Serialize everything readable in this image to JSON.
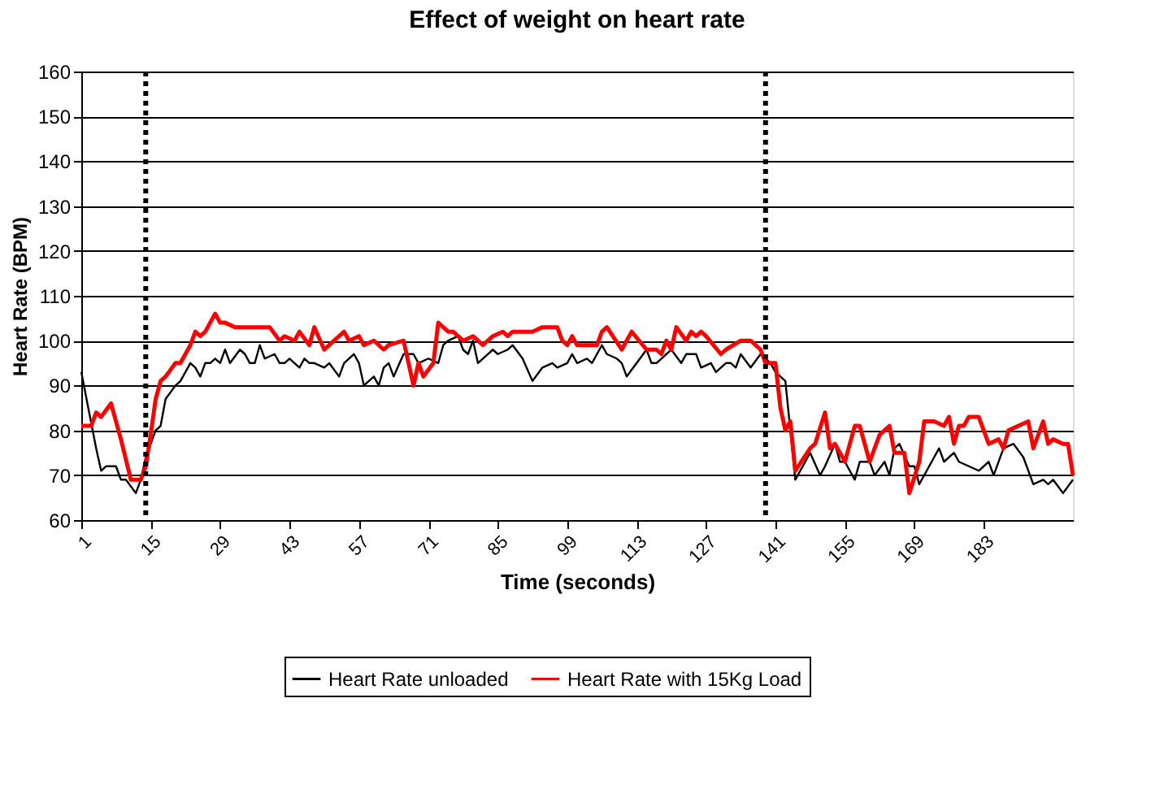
{
  "chart_data": {
    "type": "line",
    "title": "Effect of weight on heart rate",
    "xlabel": "Time (seconds)",
    "ylabel": "Heart Rate (BPM)",
    "xlim": [
      1,
      201
    ],
    "xticks": [
      1,
      15,
      29,
      43,
      57,
      71,
      85,
      99,
      113,
      127,
      141,
      155,
      169,
      183
    ],
    "ylim": [
      60,
      160
    ],
    "yticks": [
      60,
      70,
      80,
      90,
      100,
      110,
      120,
      130,
      140,
      150,
      160
    ],
    "grid": "y",
    "legend": "bottom",
    "marker": "none",
    "line_style": "solid",
    "ref_lines": [
      {
        "axis": "x",
        "value": 14,
        "color": "#000000",
        "line_style": "dotted"
      },
      {
        "axis": "x",
        "value": 139,
        "color": "#000000",
        "line_style": "dotted"
      }
    ],
    "series": [
      {
        "name": "Heart Rate unloaded",
        "color": "#000000",
        "x": [
          1,
          4,
          5,
          6,
          8,
          9,
          10,
          12,
          13,
          14,
          16,
          17,
          18,
          20,
          21,
          23,
          24,
          25,
          26,
          27,
          28,
          29,
          30,
          31,
          33,
          34,
          35,
          36,
          37,
          38,
          40,
          41,
          42,
          43,
          45,
          46,
          47,
          48,
          50,
          51,
          53,
          54,
          56,
          57,
          58,
          60,
          61,
          62,
          63,
          64,
          66,
          68,
          69,
          71,
          73,
          74,
          75,
          77,
          78,
          79,
          80,
          81,
          82,
          84,
          85,
          87,
          88,
          90,
          92,
          94,
          96,
          97,
          99,
          100,
          101,
          103,
          104,
          105,
          106,
          107,
          109,
          110,
          111,
          113,
          115,
          116,
          117,
          118,
          120,
          122,
          123,
          125,
          126,
          128,
          129,
          131,
          132,
          133,
          134,
          136,
          138,
          140,
          141,
          143,
          144,
          145,
          148,
          150,
          151,
          153,
          154,
          155,
          157,
          158,
          160,
          161,
          163,
          164,
          165,
          166,
          168,
          169,
          170,
          172,
          174,
          175,
          177,
          178,
          180,
          182,
          184,
          185,
          187,
          189,
          191,
          193,
          195,
          196,
          197,
          199,
          201
        ],
        "values": [
          93,
          76,
          71,
          72,
          72,
          69,
          69,
          66,
          69,
          74,
          80,
          81,
          87,
          90,
          91,
          95,
          94,
          92,
          95,
          95,
          96,
          95,
          98,
          95,
          98,
          97,
          95,
          95,
          99,
          96,
          97,
          95,
          95,
          96,
          94,
          96,
          95,
          95,
          94,
          95,
          92,
          95,
          97,
          95,
          90,
          92,
          90,
          94,
          95,
          92,
          97,
          97,
          95,
          96,
          95,
          99,
          100,
          101,
          98,
          97,
          100,
          95,
          96,
          98,
          97,
          98,
          99,
          96,
          91,
          94,
          95,
          94,
          95,
          97,
          95,
          96,
          95,
          97,
          99,
          97,
          96,
          95,
          92,
          95,
          98,
          95,
          95,
          96,
          98,
          95,
          97,
          97,
          94,
          95,
          93,
          95,
          95,
          94,
          97,
          94,
          97,
          95,
          93,
          91,
          80,
          69,
          75,
          70,
          72,
          77,
          73,
          73,
          69,
          73,
          73,
          70,
          73,
          70,
          76,
          77,
          72,
          72,
          68,
          72,
          76,
          73,
          75,
          73,
          72,
          71,
          73,
          70,
          76,
          77,
          74,
          68,
          69,
          68,
          69,
          66,
          69
        ]
      },
      {
        "name": "Heart Rate with 15Kg Load",
        "color": "#ff0000",
        "x": [
          1,
          3,
          4,
          5,
          7,
          9,
          11,
          13,
          14,
          15,
          16,
          17,
          18,
          20,
          21,
          23,
          24,
          25,
          26,
          28,
          29,
          30,
          32,
          39,
          41,
          42,
          44,
          45,
          47,
          48,
          50,
          51,
          54,
          55,
          57,
          58,
          60,
          62,
          63,
          66,
          67,
          68,
          69,
          70,
          72,
          73,
          75,
          76,
          78,
          80,
          82,
          84,
          86,
          87,
          88,
          90,
          92,
          94,
          97,
          98,
          99,
          100,
          101,
          105,
          106,
          107,
          110,
          112,
          115,
          117,
          118,
          119,
          120,
          121,
          123,
          124,
          125,
          126,
          127,
          130,
          131,
          134,
          136,
          138,
          139,
          140,
          141,
          142,
          143,
          144,
          145,
          148,
          149,
          151,
          152,
          153,
          155,
          156,
          157,
          158,
          160,
          162,
          164,
          165,
          167,
          168,
          170,
          171,
          173,
          175,
          176,
          177,
          178,
          179,
          180,
          182,
          184,
          186,
          187,
          188,
          190,
          192,
          193,
          195,
          196,
          197,
          199,
          200,
          201
        ],
        "values": [
          81,
          81,
          84,
          83,
          86,
          78,
          69,
          69,
          72,
          79,
          87,
          91,
          92,
          95,
          95,
          99,
          102,
          101,
          102,
          106,
          104,
          104,
          103,
          103,
          100,
          101,
          100,
          102,
          99,
          103,
          98,
          99,
          102,
          100,
          101,
          99,
          100,
          98,
          99,
          100,
          95,
          90,
          95,
          92,
          95,
          104,
          102,
          102,
          100,
          101,
          99,
          101,
          102,
          101,
          102,
          102,
          102,
          103,
          103,
          100,
          99,
          101,
          99,
          99,
          102,
          103,
          98,
          102,
          98,
          98,
          97,
          100,
          98,
          103,
          100,
          102,
          101,
          102,
          101,
          97,
          98,
          100,
          100,
          98,
          95,
          95,
          95,
          85,
          80,
          82,
          71,
          76,
          77,
          84,
          76,
          77,
          73,
          77,
          81,
          81,
          73,
          79,
          81,
          75,
          75,
          66,
          73,
          82,
          82,
          81,
          83,
          77,
          81,
          81,
          83,
          83,
          77,
          78,
          76,
          80,
          81,
          82,
          76,
          82,
          77,
          78,
          77,
          77,
          70
        ]
      }
    ]
  }
}
